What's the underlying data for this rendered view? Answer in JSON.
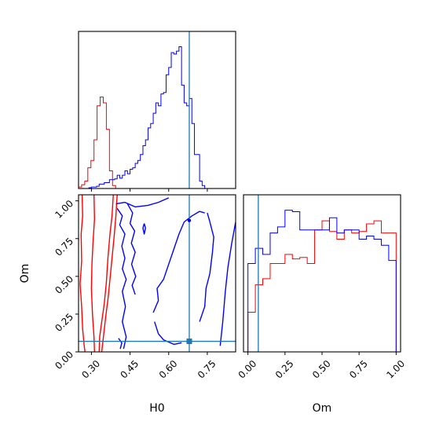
{
  "chart_data": [
    {
      "type": "histogram",
      "panel": "H0 marginal",
      "xlim": [
        0.25,
        0.86
      ],
      "truth": {
        "x": 0.68
      },
      "colors": {
        "red": "#ff0000",
        "blue": "#0000ff",
        "truth": "#1f77b4"
      },
      "series": [
        {
          "color": "#ff0000",
          "bins": [
            [
              0.25,
              0.01
            ],
            [
              0.262,
              0.025
            ],
            [
              0.274,
              0.05
            ],
            [
              0.286,
              0.14
            ],
            [
              0.298,
              0.19
            ],
            [
              0.31,
              0.33
            ],
            [
              0.322,
              0.56
            ],
            [
              0.334,
              0.62
            ],
            [
              0.346,
              0.58
            ],
            [
              0.358,
              0.4
            ],
            [
              0.37,
              0.12
            ],
            [
              0.382,
              0.02
            ],
            [
              0.394,
              0.0
            ]
          ]
        },
        {
          "color": "#0000ff",
          "bins": [
            [
              0.25,
              0.0
            ],
            [
              0.26,
              0.0
            ],
            [
              0.27,
              0.0
            ],
            [
              0.28,
              0.0
            ],
            [
              0.29,
              0.005
            ],
            [
              0.3,
              0.01
            ],
            [
              0.31,
              0.01
            ],
            [
              0.32,
              0.015
            ],
            [
              0.33,
              0.03
            ],
            [
              0.34,
              0.03
            ],
            [
              0.35,
              0.04
            ],
            [
              0.36,
              0.04
            ],
            [
              0.37,
              0.06
            ],
            [
              0.38,
              0.06
            ],
            [
              0.39,
              0.065
            ],
            [
              0.4,
              0.09
            ],
            [
              0.41,
              0.07
            ],
            [
              0.42,
              0.09
            ],
            [
              0.43,
              0.12
            ],
            [
              0.44,
              0.1
            ],
            [
              0.45,
              0.13
            ],
            [
              0.46,
              0.14
            ],
            [
              0.47,
              0.17
            ],
            [
              0.48,
              0.19
            ],
            [
              0.49,
              0.23
            ],
            [
              0.5,
              0.29
            ],
            [
              0.51,
              0.33
            ],
            [
              0.52,
              0.41
            ],
            [
              0.53,
              0.44
            ],
            [
              0.54,
              0.51
            ],
            [
              0.55,
              0.58
            ],
            [
              0.56,
              0.56
            ],
            [
              0.57,
              0.64
            ],
            [
              0.58,
              0.65
            ],
            [
              0.59,
              0.77
            ],
            [
              0.6,
              0.82
            ],
            [
              0.61,
              0.92
            ],
            [
              0.62,
              0.91
            ],
            [
              0.63,
              0.93
            ],
            [
              0.64,
              0.96
            ],
            [
              0.65,
              0.7
            ],
            [
              0.66,
              0.58
            ],
            [
              0.67,
              0.56
            ],
            [
              0.68,
              0.61
            ],
            [
              0.69,
              0.44
            ],
            [
              0.7,
              0.23
            ],
            [
              0.71,
              0.23
            ],
            [
              0.72,
              0.05
            ],
            [
              0.73,
              0.02
            ],
            [
              0.74,
              0.0
            ]
          ]
        }
      ]
    },
    {
      "type": "contour",
      "panel": "H0 vs Om",
      "xlabel": "H0",
      "ylabel": "Om",
      "xlim": [
        0.25,
        0.86
      ],
      "ylim": [
        0.0,
        1.04
      ],
      "xticks": [
        "0.30",
        "0.45",
        "0.60",
        "0.75"
      ],
      "xtick_values": [
        0.3,
        0.45,
        0.6,
        0.75
      ],
      "yticks": [
        "0.00",
        "0.25",
        "0.50",
        "0.75",
        "1.00"
      ],
      "ytick_values": [
        0.0,
        0.25,
        0.5,
        0.75,
        1.0
      ],
      "truth": {
        "x": 0.68,
        "y": 0.07
      },
      "colors": {
        "red": "#ff0000",
        "blue": "#0000ff",
        "truth": "#1f77b4"
      },
      "contours": [
        {
          "color": "#ff0000",
          "points": [
            [
              0.264,
              1.04
            ],
            [
              0.266,
              0.9
            ],
            [
              0.26,
              0.78
            ],
            [
              0.262,
              0.6
            ],
            [
              0.256,
              0.45
            ],
            [
              0.262,
              0.3
            ],
            [
              0.266,
              0.15
            ],
            [
              0.272,
              0.04
            ],
            [
              0.275,
              0.0
            ]
          ]
        },
        {
          "color": "#ff0000",
          "points": [
            [
              0.31,
              1.04
            ],
            [
              0.312,
              0.88
            ],
            [
              0.306,
              0.72
            ],
            [
              0.302,
              0.58
            ],
            [
              0.3,
              0.42
            ],
            [
              0.304,
              0.25
            ],
            [
              0.31,
              0.1
            ],
            [
              0.312,
              0.0
            ]
          ]
        },
        {
          "color": "#ff0000",
          "points": [
            [
              0.385,
              1.04
            ],
            [
              0.38,
              0.9
            ],
            [
              0.372,
              0.78
            ],
            [
              0.364,
              0.62
            ],
            [
              0.358,
              0.46
            ],
            [
              0.35,
              0.32
            ],
            [
              0.34,
              0.2
            ],
            [
              0.332,
              0.1
            ],
            [
              0.33,
              0.0
            ]
          ]
        },
        {
          "color": "#ff0000",
          "points": [
            [
              0.4,
              1.04
            ],
            [
              0.395,
              0.9
            ],
            [
              0.388,
              0.76
            ],
            [
              0.38,
              0.62
            ],
            [
              0.372,
              0.48
            ],
            [
              0.365,
              0.36
            ],
            [
              0.356,
              0.24
            ],
            [
              0.348,
              0.12
            ],
            [
              0.34,
              0.0
            ]
          ]
        },
        {
          "color": "#ff0000",
          "points": [
            [
              0.245,
              0.79
            ],
            [
              0.24,
              0.74
            ],
            [
              0.244,
              0.68
            ],
            [
              0.25,
              0.74
            ],
            [
              0.248,
              0.79
            ]
          ]
        },
        {
          "color": "#ff0000",
          "points": [
            [
              0.24,
              0.4
            ],
            [
              0.236,
              0.32
            ],
            [
              0.242,
              0.24
            ],
            [
              0.248,
              0.3
            ],
            [
              0.246,
              0.4
            ]
          ]
        },
        {
          "color": "#0000ff",
          "points": [
            [
              0.395,
              0.98
            ],
            [
              0.43,
              0.99
            ],
            [
              0.47,
              0.96
            ],
            [
              0.52,
              0.97
            ],
            [
              0.56,
              0.99
            ],
            [
              0.6,
              1.02
            ]
          ]
        },
        {
          "color": "#0000ff",
          "points": [
            [
              0.4,
              0.95
            ],
            [
              0.42,
              0.9
            ],
            [
              0.41,
              0.84
            ],
            [
              0.43,
              0.78
            ],
            [
              0.418,
              0.7
            ],
            [
              0.43,
              0.62
            ],
            [
              0.42,
              0.55
            ],
            [
              0.435,
              0.48
            ],
            [
              0.42,
              0.4
            ],
            [
              0.432,
              0.3
            ],
            [
              0.42,
              0.2
            ],
            [
              0.435,
              0.1
            ],
            [
              0.425,
              0.02
            ]
          ]
        },
        {
          "color": "#0000ff",
          "points": [
            [
              0.44,
              0.98
            ],
            [
              0.46,
              0.92
            ],
            [
              0.45,
              0.85
            ],
            [
              0.468,
              0.8
            ],
            [
              0.455,
              0.72
            ],
            [
              0.47,
              0.66
            ],
            [
              0.456,
              0.58
            ],
            [
              0.472,
              0.5
            ],
            [
              0.458,
              0.44
            ],
            [
              0.47,
              0.38
            ]
          ]
        },
        {
          "color": "#0000ff",
          "points": [
            [
              0.54,
              0.26
            ],
            [
              0.56,
              0.34
            ],
            [
              0.555,
              0.42
            ],
            [
              0.58,
              0.48
            ],
            [
              0.6,
              0.58
            ],
            [
              0.62,
              0.68
            ],
            [
              0.64,
              0.78
            ],
            [
              0.66,
              0.86
            ],
            [
              0.69,
              0.9
            ],
            [
              0.72,
              0.93
            ],
            [
              0.74,
              0.92
            ]
          ]
        },
        {
          "color": "#0000ff",
          "points": [
            [
              0.545,
              0.2
            ],
            [
              0.56,
              0.12
            ],
            [
              0.58,
              0.08
            ],
            [
              0.62,
              0.05
            ],
            [
              0.65,
              0.06
            ]
          ]
        },
        {
          "color": "#0000ff",
          "points": [
            [
              0.72,
              0.2
            ],
            [
              0.74,
              0.3
            ],
            [
              0.745,
              0.42
            ],
            [
              0.76,
              0.52
            ],
            [
              0.77,
              0.66
            ],
            [
              0.775,
              0.76
            ],
            [
              0.76,
              0.86
            ],
            [
              0.75,
              0.92
            ]
          ]
        },
        {
          "color": "#0000ff",
          "points": [
            [
              0.8,
              0.04
            ],
            [
              0.81,
              0.2
            ],
            [
              0.82,
              0.4
            ],
            [
              0.83,
              0.56
            ],
            [
              0.845,
              0.72
            ],
            [
              0.86,
              0.86
            ]
          ]
        },
        {
          "color": "#0000ff",
          "points": [
            [
              0.505,
              0.85
            ],
            [
              0.5,
              0.82
            ],
            [
              0.505,
              0.78
            ],
            [
              0.51,
              0.82
            ],
            [
              0.505,
              0.85
            ]
          ]
        },
        {
          "color": "#0000ff",
          "points": [
            [
              0.405,
              0.09
            ],
            [
              0.418,
              0.06
            ],
            [
              0.412,
              0.02
            ]
          ]
        }
      ]
    },
    {
      "type": "histogram",
      "panel": "Om marginal",
      "xlabel": "Om",
      "xlim": [
        -0.03,
        1.03
      ],
      "xticks": [
        "0.00",
        "0.25",
        "0.50",
        "0.75",
        "1.00"
      ],
      "xtick_values": [
        0.0,
        0.25,
        0.5,
        0.75,
        1.0
      ],
      "truth": {
        "x": 0.07
      },
      "colors": {
        "red": "#ff0000",
        "blue": "#0000ff",
        "truth": "#1f77b4"
      },
      "series": [
        {
          "color": "#ff0000",
          "bins": [
            [
              0.0,
              0.26
            ],
            [
              0.05,
              0.44
            ],
            [
              0.1,
              0.48
            ],
            [
              0.15,
              0.58
            ],
            [
              0.2,
              0.58
            ],
            [
              0.25,
              0.64
            ],
            [
              0.3,
              0.61
            ],
            [
              0.35,
              0.62
            ],
            [
              0.4,
              0.58
            ],
            [
              0.45,
              0.8
            ],
            [
              0.5,
              0.86
            ],
            [
              0.55,
              0.79
            ],
            [
              0.6,
              0.74
            ],
            [
              0.65,
              0.8
            ],
            [
              0.7,
              0.78
            ],
            [
              0.75,
              0.79
            ],
            [
              0.8,
              0.84
            ],
            [
              0.85,
              0.86
            ],
            [
              0.9,
              0.78
            ],
            [
              0.95,
              0.78
            ]
          ]
        },
        {
          "color": "#0000ff",
          "bins": [
            [
              0.0,
              0.58
            ],
            [
              0.05,
              0.68
            ],
            [
              0.1,
              0.64
            ],
            [
              0.15,
              0.78
            ],
            [
              0.2,
              0.82
            ],
            [
              0.25,
              0.93
            ],
            [
              0.3,
              0.92
            ],
            [
              0.35,
              0.8
            ],
            [
              0.4,
              0.8
            ],
            [
              0.45,
              0.8
            ],
            [
              0.5,
              0.8
            ],
            [
              0.55,
              0.88
            ],
            [
              0.6,
              0.78
            ],
            [
              0.65,
              0.8
            ],
            [
              0.7,
              0.8
            ],
            [
              0.75,
              0.74
            ],
            [
              0.8,
              0.76
            ],
            [
              0.85,
              0.74
            ],
            [
              0.9,
              0.7
            ],
            [
              0.95,
              0.6
            ]
          ]
        }
      ]
    }
  ]
}
